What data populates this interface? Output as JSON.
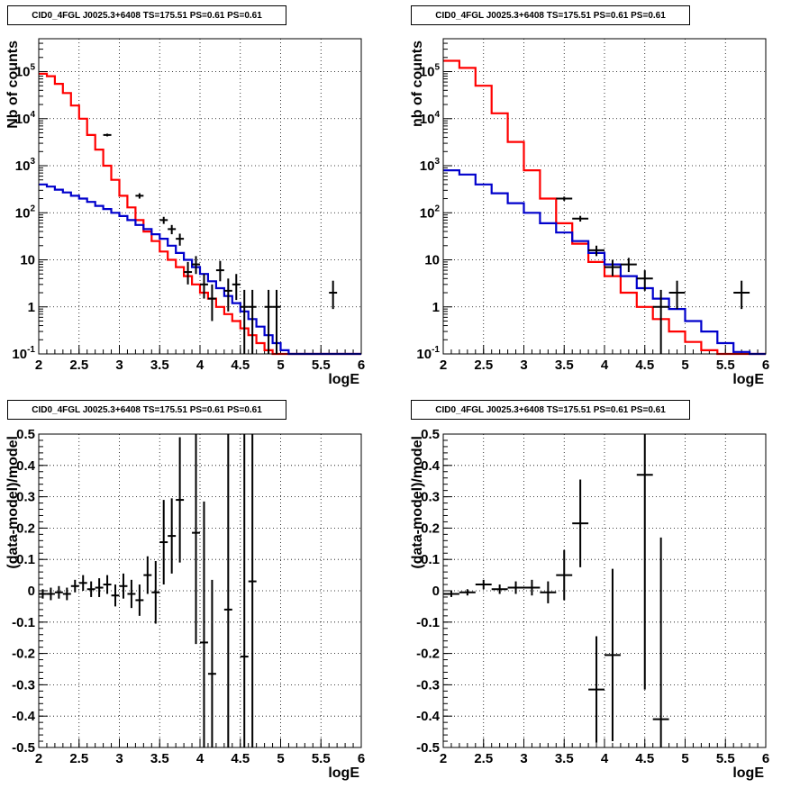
{
  "chart_data": [
    {
      "type": "step",
      "title": "CID0_4FGL J0025.3+6408 TS=175.51 PS=0.61 PS=0.61",
      "xlabel": "logE",
      "ylabel": "Nb of counts",
      "xlim": [
        2,
        6
      ],
      "ylim": [
        0.1,
        500000
      ],
      "yscale": "log",
      "grid": true,
      "xticks": [
        "2",
        "2.5",
        "3",
        "3.5",
        "4",
        "4.5",
        "5",
        "5.5",
        "6"
      ],
      "yticks": [
        "10^-1",
        "1",
        "10",
        "10^2",
        "10^3",
        "10^4",
        "10^5"
      ],
      "series": [
        {
          "color": "#ff0000",
          "bin_width": 0.1,
          "edges_start": 2.0,
          "values": [
            90000,
            80000,
            55000,
            35000,
            19000,
            10000,
            4500,
            2200,
            1000,
            500,
            230,
            130,
            70,
            40,
            25,
            15,
            10,
            7,
            4.5,
            3,
            2,
            1.5,
            1,
            0.7,
            0.5,
            0.35,
            0.25,
            0.17,
            0.12,
            0.1,
            0.1,
            0.1,
            0.1,
            0.1,
            0.1,
            0.1,
            0.1,
            0.1,
            0.1,
            0.1
          ]
        },
        {
          "color": "#0000cc",
          "bin_width": 0.1,
          "edges_start": 2.0,
          "values": [
            400,
            360,
            310,
            270,
            230,
            200,
            170,
            140,
            120,
            100,
            85,
            70,
            55,
            45,
            35,
            28,
            20,
            14,
            10,
            7,
            5,
            3.5,
            2.5,
            1.7,
            1.2,
            0.8,
            0.55,
            0.38,
            0.25,
            0.17,
            0.12,
            0.1,
            0.1,
            0.1,
            0.1,
            0.1,
            0.1,
            0.1,
            0.1,
            0.1
          ]
        }
      ],
      "points": [
        {
          "x": 2.85,
          "y": 4500,
          "ylo": 4200,
          "yhi": 4800
        },
        {
          "x": 3.25,
          "y": 230,
          "ylo": 200,
          "yhi": 260
        },
        {
          "x": 3.55,
          "y": 70,
          "ylo": 58,
          "yhi": 82
        },
        {
          "x": 3.65,
          "y": 45,
          "ylo": 35,
          "yhi": 55
        },
        {
          "x": 3.75,
          "y": 28,
          "ylo": 20,
          "yhi": 36
        },
        {
          "x": 3.85,
          "y": 5.5,
          "ylo": 3,
          "yhi": 9
        },
        {
          "x": 3.95,
          "y": 8,
          "ylo": 5,
          "yhi": 12
        },
        {
          "x": 4.05,
          "y": 3,
          "ylo": 1.5,
          "yhi": 5
        },
        {
          "x": 4.15,
          "y": 1.5,
          "ylo": 0.5,
          "yhi": 3
        },
        {
          "x": 4.25,
          "y": 6,
          "ylo": 3.5,
          "yhi": 9.5
        },
        {
          "x": 4.35,
          "y": 2.2,
          "ylo": 0.8,
          "yhi": 4
        },
        {
          "x": 4.45,
          "y": 3,
          "ylo": 1.4,
          "yhi": 5
        },
        {
          "x": 4.55,
          "y": 1,
          "ylo": 0.1,
          "yhi": 2.3
        },
        {
          "x": 4.65,
          "y": 1,
          "ylo": 0.1,
          "yhi": 2.3
        },
        {
          "x": 4.85,
          "y": 1,
          "ylo": 0.1,
          "yhi": 2.3
        },
        {
          "x": 4.95,
          "y": 1,
          "ylo": 0.1,
          "yhi": 2.3
        },
        {
          "x": 5.65,
          "y": 2,
          "ylo": 0.9,
          "yhi": 3.6
        }
      ],
      "point_xerr": 0.05
    },
    {
      "type": "step",
      "title": "CID0_4FGL J0025.3+6408 TS=175.51 PS=0.61 PS=0.61",
      "xlabel": "logE",
      "ylabel": "nb of counts",
      "xlim": [
        2,
        6
      ],
      "ylim": [
        0.1,
        500000
      ],
      "yscale": "log",
      "grid": true,
      "xticks": [
        "2",
        "2.5",
        "3",
        "3.5",
        "4",
        "4.5",
        "5",
        "5.5",
        "6"
      ],
      "yticks": [
        "10^-1",
        "1",
        "10",
        "10^2",
        "10^3",
        "10^4",
        "10^5"
      ],
      "series": [
        {
          "color": "#ff0000",
          "bin_width": 0.2,
          "edges_start": 2.0,
          "values": [
            170000,
            120000,
            50000,
            13000,
            3200,
            800,
            200,
            60,
            22,
            9,
            4.5,
            2,
            1,
            0.55,
            0.3,
            0.18,
            0.12,
            0.1,
            0.1,
            0.1
          ]
        },
        {
          "color": "#0000cc",
          "bin_width": 0.2,
          "edges_start": 2.0,
          "values": [
            800,
            650,
            400,
            260,
            160,
            100,
            60,
            38,
            25,
            14,
            8,
            4.5,
            2.5,
            1.5,
            0.9,
            0.5,
            0.3,
            0.17,
            0.11,
            0.1
          ]
        }
      ],
      "points": [
        {
          "x": 3.5,
          "y": 200,
          "ylo": 180,
          "yhi": 220
        },
        {
          "x": 3.7,
          "y": 75,
          "ylo": 65,
          "yhi": 86
        },
        {
          "x": 3.9,
          "y": 16,
          "ylo": 12,
          "yhi": 20
        },
        {
          "x": 4.1,
          "y": 7,
          "ylo": 4.5,
          "yhi": 10
        },
        {
          "x": 4.3,
          "y": 8,
          "ylo": 5.5,
          "yhi": 11
        },
        {
          "x": 4.5,
          "y": 4,
          "ylo": 2.2,
          "yhi": 6
        },
        {
          "x": 4.7,
          "y": 1,
          "ylo": 0.1,
          "yhi": 2.3
        },
        {
          "x": 4.9,
          "y": 2,
          "ylo": 0.9,
          "yhi": 3.6
        },
        {
          "x": 5.7,
          "y": 2,
          "ylo": 0.9,
          "yhi": 3.6
        }
      ],
      "point_xerr": 0.1
    },
    {
      "type": "scatter",
      "title": "CID0_4FGL J0025.3+6408 TS=175.51 PS=0.61 PS=0.61",
      "xlabel": "logE",
      "ylabel": "(data-model)/model",
      "xlim": [
        2,
        6
      ],
      "ylim": [
        -0.5,
        0.5
      ],
      "yscale": "linear",
      "grid": true,
      "xticks": [
        "2",
        "2.5",
        "3",
        "3.5",
        "4",
        "4.5",
        "5",
        "5.5",
        "6"
      ],
      "yticks": [
        "-0.5",
        "-0.4",
        "-0.3",
        "-0.2",
        "-0.1",
        "0",
        "0.1",
        "0.2",
        "0.3",
        "0.4",
        "0.5"
      ],
      "points": [
        {
          "x": 2.05,
          "y": -0.01,
          "err": 0.015
        },
        {
          "x": 2.15,
          "y": -0.01,
          "err": 0.02
        },
        {
          "x": 2.25,
          "y": -0.005,
          "err": 0.02
        },
        {
          "x": 2.35,
          "y": -0.01,
          "err": 0.02
        },
        {
          "x": 2.45,
          "y": 0.015,
          "err": 0.02
        },
        {
          "x": 2.55,
          "y": 0.025,
          "err": 0.025
        },
        {
          "x": 2.65,
          "y": 0.005,
          "err": 0.025
        },
        {
          "x": 2.75,
          "y": 0.01,
          "err": 0.03
        },
        {
          "x": 2.85,
          "y": 0.02,
          "err": 0.03
        },
        {
          "x": 2.95,
          "y": -0.015,
          "err": 0.035
        },
        {
          "x": 3.05,
          "y": 0.015,
          "err": 0.04
        },
        {
          "x": 3.15,
          "y": -0.01,
          "err": 0.045
        },
        {
          "x": 3.25,
          "y": -0.03,
          "err": 0.05
        },
        {
          "x": 3.35,
          "y": 0.05,
          "err": 0.06
        },
        {
          "x": 3.45,
          "y": -0.005,
          "err": 0.1
        },
        {
          "x": 3.55,
          "y": 0.155,
          "err": 0.135
        },
        {
          "x": 3.65,
          "y": 0.175,
          "err": 0.12
        },
        {
          "x": 3.75,
          "y": 0.29,
          "err": 0.2
        },
        {
          "x": 3.95,
          "y": 0.185,
          "err": 0.355
        },
        {
          "x": 4.05,
          "y": -0.165,
          "err": 0.45
        },
        {
          "x": 4.15,
          "y": -0.265,
          "err": 0.3
        },
        {
          "x": 4.35,
          "y": -0.06,
          "err": 0.6
        },
        {
          "x": 4.55,
          "y": -0.21,
          "err": 0.8
        },
        {
          "x": 4.65,
          "y": 0.03,
          "err": 0.8
        }
      ],
      "point_xerr": 0.05
    },
    {
      "type": "scatter",
      "title": "CID0_4FGL J0025.3+6408 TS=175.51 PS=0.61 PS=0.61",
      "xlabel": "logE",
      "ylabel": "(data-model)/model",
      "xlim": [
        2,
        6
      ],
      "ylim": [
        -0.5,
        0.5
      ],
      "yscale": "linear",
      "grid": true,
      "xticks": [
        "2",
        "2.5",
        "3",
        "3.5",
        "4",
        "4.5",
        "5",
        "5.5",
        "6"
      ],
      "yticks": [
        "-0.5",
        "-0.4",
        "-0.3",
        "-0.2",
        "-0.1",
        "0",
        "0.1",
        "0.2",
        "0.3",
        "0.4",
        "0.5"
      ],
      "points": [
        {
          "x": 2.1,
          "y": -0.01,
          "err": 0.01
        },
        {
          "x": 2.3,
          "y": -0.005,
          "err": 0.01
        },
        {
          "x": 2.5,
          "y": 0.02,
          "err": 0.015
        },
        {
          "x": 2.7,
          "y": 0.005,
          "err": 0.015
        },
        {
          "x": 2.9,
          "y": 0.01,
          "err": 0.02
        },
        {
          "x": 3.1,
          "y": 0.01,
          "err": 0.025
        },
        {
          "x": 3.3,
          "y": -0.005,
          "err": 0.035
        },
        {
          "x": 3.5,
          "y": 0.05,
          "err": 0.08
        },
        {
          "x": 3.7,
          "y": 0.215,
          "err": 0.14
        },
        {
          "x": 3.9,
          "y": -0.315,
          "err": 0.17
        },
        {
          "x": 4.1,
          "y": -0.205,
          "err": 0.275
        },
        {
          "x": 4.5,
          "y": 0.37,
          "err": 0.685
        },
        {
          "x": 4.7,
          "y": -0.41,
          "err": 0.58
        }
      ],
      "point_xerr": 0.1
    }
  ]
}
